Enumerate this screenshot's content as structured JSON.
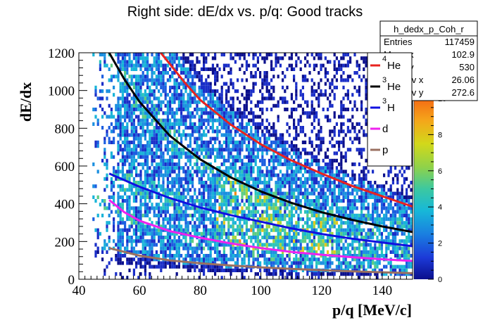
{
  "chart_data": {
    "type": "heatmap",
    "title": "Right side: dE/dx vs. p/q: Good tracks",
    "xlabel": "p/q [MeV/c]",
    "ylabel": "dE/dx",
    "xlim": [
      40,
      150
    ],
    "ylim": [
      0,
      1200
    ],
    "x_ticks": [
      "40",
      "60",
      "80",
      "100",
      "120",
      "140"
    ],
    "y_ticks": [
      "0",
      "200",
      "400",
      "600",
      "800",
      "1000",
      "1200"
    ],
    "z_range": [
      0,
      10
    ],
    "z_ticks": [
      "0",
      "2",
      "4",
      "6",
      "8",
      "10"
    ],
    "stats_box": {
      "name": "h_dedx_p_Coh_r",
      "rows": [
        {
          "label": "Entries",
          "value": "117459"
        },
        {
          "label": "Mean x",
          "value": "102.9"
        },
        {
          "label": "Mean y",
          "value": "530"
        },
        {
          "label": "Std Dev x",
          "value": "26.06"
        },
        {
          "label": "Std Dev y",
          "value": "272.6"
        }
      ]
    },
    "series": [
      {
        "name": "4He",
        "color": "#e8231f",
        "x": [
          67,
          70,
          75,
          80,
          90,
          100,
          110,
          120,
          130,
          140,
          150
        ],
        "y": [
          1200,
          1140,
          1040,
          950,
          820,
          715,
          630,
          560,
          495,
          440,
          385
        ]
      },
      {
        "name": "3He",
        "color": "#000000",
        "x": [
          50,
          55,
          60,
          70,
          80,
          90,
          100,
          110,
          120,
          130,
          140,
          150
        ],
        "y": [
          1200,
          1060,
          940,
          760,
          635,
          540,
          465,
          405,
          355,
          315,
          280,
          250
        ]
      },
      {
        "name": "3H",
        "color": "#1010e0",
        "x": [
          50,
          60,
          70,
          80,
          90,
          100,
          110,
          120,
          130,
          140,
          150
        ],
        "y": [
          560,
          490,
          430,
          380,
          340,
          305,
          270,
          240,
          215,
          195,
          175
        ]
      },
      {
        "name": "d",
        "color": "#ee22ee",
        "x": [
          50,
          55,
          60,
          70,
          80,
          90,
          100,
          110,
          120,
          130,
          140,
          150
        ],
        "y": [
          420,
          355,
          310,
          255,
          220,
          190,
          165,
          145,
          130,
          117,
          106,
          97
        ]
      },
      {
        "name": "p",
        "color": "#9a7060",
        "x": [
          50,
          60,
          70,
          80,
          90,
          100,
          110,
          120,
          130,
          140,
          150
        ],
        "y": [
          165,
          125,
          100,
          85,
          73,
          63,
          55,
          48,
          42,
          37,
          32
        ]
      }
    ],
    "legend": {
      "placement": "top-right",
      "items": [
        {
          "sup": "4",
          "text": "He",
          "color": "#e8231f"
        },
        {
          "sup": "3",
          "text": "He",
          "color": "#000000"
        },
        {
          "sup": "3",
          "text": "H",
          "color": "#1010e0"
        },
        {
          "sup": "",
          "text": "d",
          "color": "#ee22ee"
        },
        {
          "sup": "",
          "text": "p",
          "color": "#9a7060"
        }
      ]
    },
    "grid": false
  }
}
